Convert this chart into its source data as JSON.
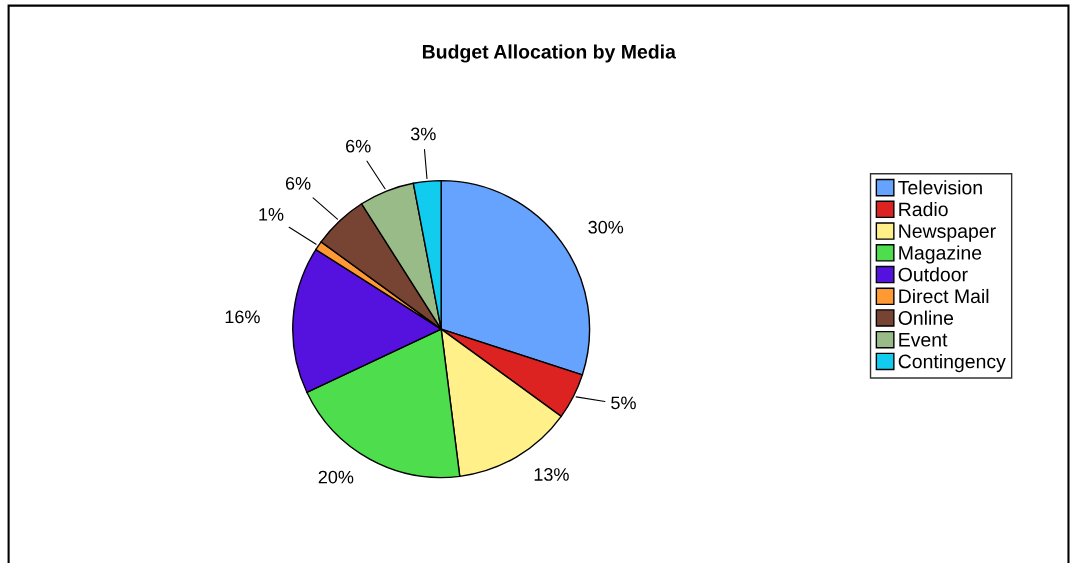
{
  "chart_data": {
    "type": "pie",
    "title": "Budget Allocation by Media",
    "categories": [
      "Television",
      "Radio",
      "Newspaper",
      "Magazine",
      "Outdoor",
      "Direct Mail",
      "Online",
      "Event",
      "Contingency"
    ],
    "values": [
      30,
      5,
      13,
      20,
      16,
      1,
      6,
      6,
      3
    ],
    "colors": [
      "#66a3ff",
      "#dd2222",
      "#fff08a",
      "#4ddd4d",
      "#5511dd",
      "#ff9933",
      "#774433",
      "#99bb88",
      "#11ccee"
    ],
    "value_labels": [
      "30%",
      "5%",
      "13%",
      "20%",
      "16%",
      "1%",
      "6%",
      "6%",
      "3%"
    ],
    "legend": "right"
  }
}
